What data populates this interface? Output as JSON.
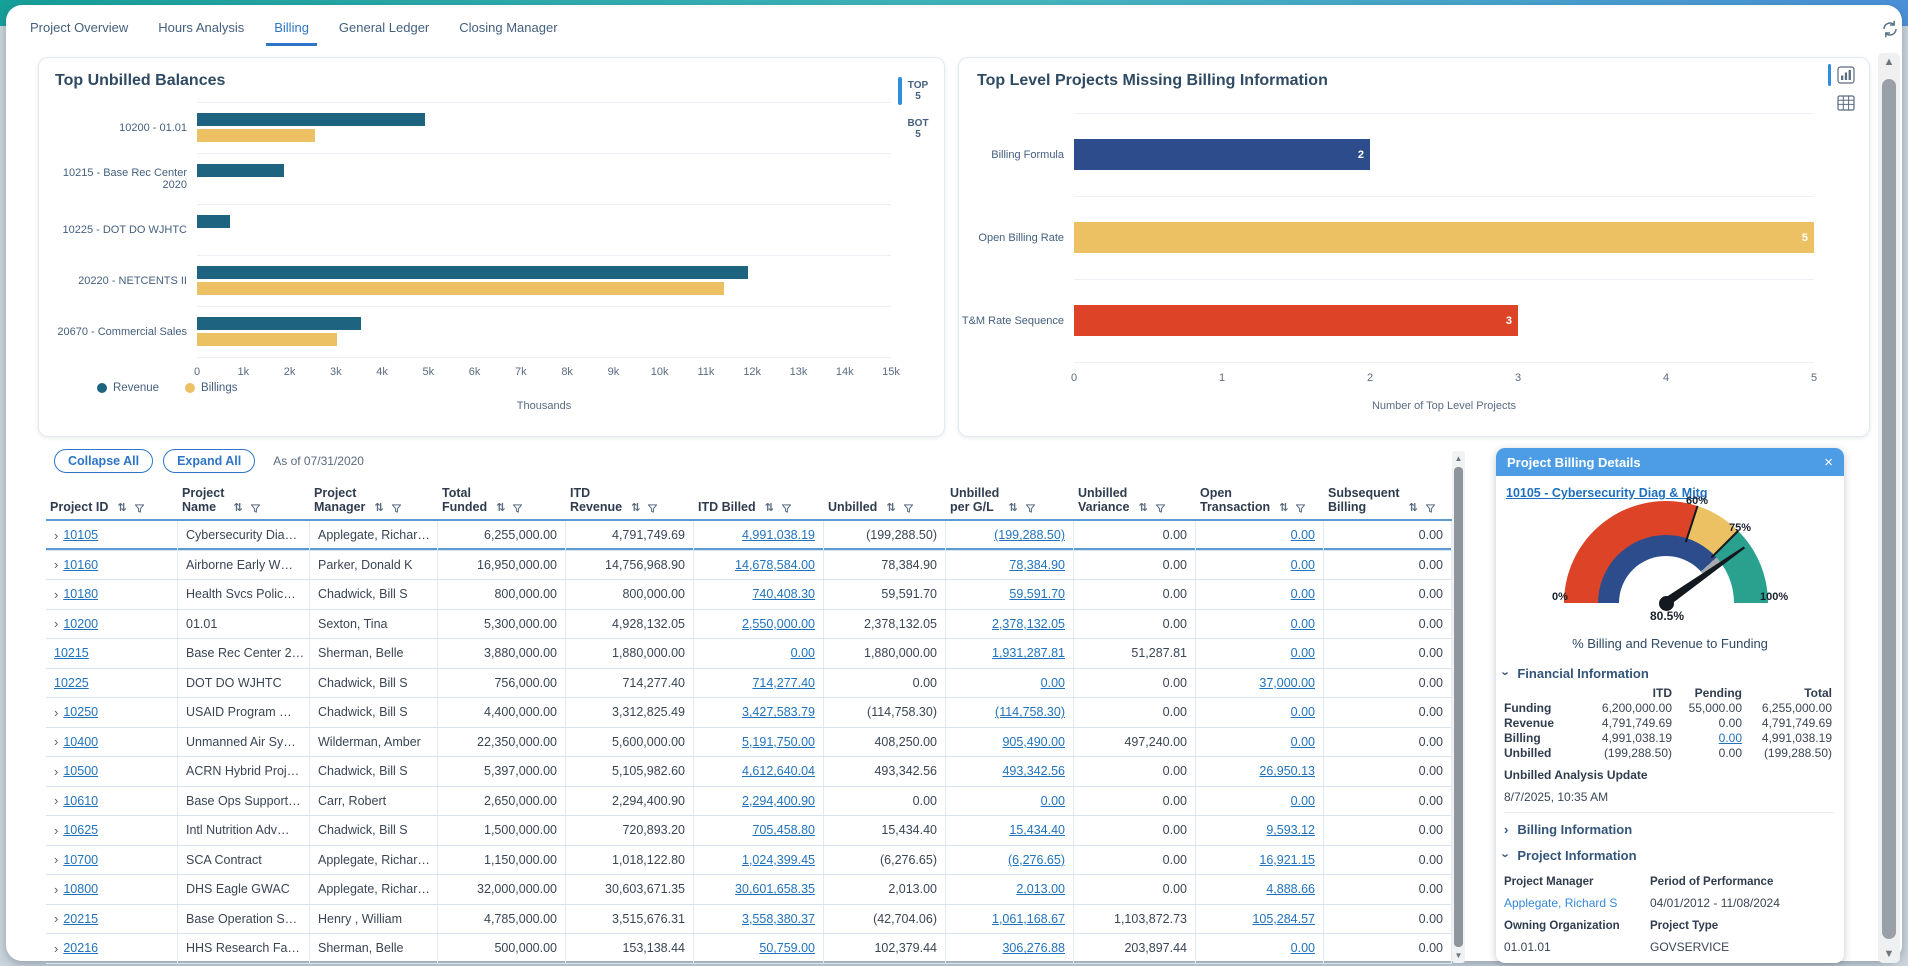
{
  "tabs": [
    {
      "label": "Project Overview",
      "active": false
    },
    {
      "label": "Hours Analysis",
      "active": false
    },
    {
      "label": "Billing",
      "active": true
    },
    {
      "label": "General Ledger",
      "active": false
    },
    {
      "label": "Closing Manager",
      "active": false
    }
  ],
  "toolbar": {
    "collapse_all": "Collapse All",
    "expand_all": "Expand All",
    "as_of": "As of 07/31/2020"
  },
  "chart_data": [
    {
      "type": "bar",
      "orientation": "horizontal",
      "title": "Top Unbilled Balances",
      "categories": [
        "10200 - 01.01",
        "10215 - Base Rec Center 2020",
        "10225 - DOT DO WJHTC",
        "20220 - NETCENTS II",
        "20670 - Commercial Sales"
      ],
      "series": [
        {
          "name": "Revenue",
          "color": "#1e6480",
          "values": [
            4928,
            1880,
            714,
            11900,
            3540
          ]
        },
        {
          "name": "Billings",
          "color": "#ecc164",
          "values": [
            2550,
            0,
            0,
            11400,
            3020
          ]
        }
      ],
      "values_unit": "thousands",
      "xlim": [
        0,
        15000
      ],
      "xticks": [
        "0",
        "1k",
        "2k",
        "3k",
        "4k",
        "5k",
        "6k",
        "7k",
        "8k",
        "9k",
        "10k",
        "11k",
        "12k",
        "13k",
        "14k",
        "15k"
      ],
      "xlabel": "Thousands",
      "legend_position": "bottom-left",
      "toggle": {
        "options": [
          "TOP 5",
          "BOT 5"
        ],
        "active": 0
      }
    },
    {
      "type": "bar",
      "orientation": "horizontal",
      "title": "Top Level Projects Missing Billing Information",
      "categories": [
        "Billing Formula",
        "Open Billing Rate",
        "T&M Rate Sequence"
      ],
      "values": [
        2,
        5,
        3
      ],
      "bar_colors": [
        "#2c4c8c",
        "#ecc164",
        "#dc4327"
      ],
      "data_labels": true,
      "xlim": [
        0,
        5
      ],
      "xticks": [
        "0",
        "1",
        "2",
        "3",
        "4",
        "5"
      ],
      "xlabel": "Number of Top Level Projects",
      "view_icons": [
        "bar-chart-icon",
        "table-icon"
      ],
      "active_view": 0
    },
    {
      "type": "gauge",
      "value": 80.5,
      "value_label": "80.5%",
      "min_label": "0%",
      "max_label": "100%",
      "segment_labels": [
        "60%",
        "75%"
      ],
      "segments": [
        {
          "from": 0,
          "to": 60,
          "color": "#dc4327"
        },
        {
          "from": 60,
          "to": 75,
          "color": "#ecc164"
        },
        {
          "from": 75,
          "to": 100,
          "color": "#2aa18f"
        }
      ],
      "inner_arc": {
        "color": "#2c4c8c",
        "to": 76.6,
        "gray_color": "#a7abb0",
        "gray_to": 80.5
      },
      "caption": "% Billing and Revenue to Funding"
    }
  ],
  "table": {
    "columns": [
      {
        "label": "Project ID"
      },
      {
        "label": "Project\nName"
      },
      {
        "label": "Project\nManager"
      },
      {
        "label": "Total\nFunded"
      },
      {
        "label": "ITD\nRevenue"
      },
      {
        "label": "ITD Billed"
      },
      {
        "label": "Unbilled"
      },
      {
        "label": "Unbilled\nper G/L"
      },
      {
        "label": "Unbilled\nVariance"
      },
      {
        "label": "Open\nTransaction"
      },
      {
        "label": "Subsequent\nBilling"
      }
    ],
    "selected_row_id": "10105",
    "rows": [
      {
        "id": "10105",
        "expandable": true,
        "name": "Cybersecurity Dia…",
        "manager": "Applegate, Richar…",
        "funded": "6,255,000.00",
        "revenue": "4,791,749.69",
        "billed": "4,991,038.19",
        "unbilled": "(199,288.50)",
        "unbilled_gl": "(199,288.50)",
        "variance": "0.00",
        "open_txn": "0.00",
        "subsequent": "0.00"
      },
      {
        "id": "10160",
        "expandable": true,
        "name": "Airborne Early W…",
        "manager": "Parker, Donald K",
        "funded": "16,950,000.00",
        "revenue": "14,756,968.90",
        "billed": "14,678,584.00",
        "unbilled": "78,384.90",
        "unbilled_gl": "78,384.90",
        "variance": "0.00",
        "open_txn": "0.00",
        "subsequent": "0.00"
      },
      {
        "id": "10180",
        "expandable": true,
        "name": "Health Svcs Polic…",
        "manager": "Chadwick, Bill S",
        "funded": "800,000.00",
        "revenue": "800,000.00",
        "billed": "740,408.30",
        "unbilled": "59,591.70",
        "unbilled_gl": "59,591.70",
        "variance": "0.00",
        "open_txn": "0.00",
        "subsequent": "0.00"
      },
      {
        "id": "10200",
        "expandable": true,
        "name": "01.01",
        "manager": "Sexton, Tina",
        "funded": "5,300,000.00",
        "revenue": "4,928,132.05",
        "billed": "2,550,000.00",
        "unbilled": "2,378,132.05",
        "unbilled_gl": "2,378,132.05",
        "variance": "0.00",
        "open_txn": "0.00",
        "subsequent": "0.00"
      },
      {
        "id": "10215",
        "expandable": false,
        "name": "Base Rec Center 2…",
        "manager": "Sherman, Belle",
        "funded": "3,880,000.00",
        "revenue": "1,880,000.00",
        "billed": "0.00",
        "unbilled": "1,880,000.00",
        "unbilled_gl": "1,931,287.81",
        "variance": "51,287.81",
        "open_txn": "0.00",
        "subsequent": "0.00"
      },
      {
        "id": "10225",
        "expandable": false,
        "name": "DOT DO WJHTC",
        "manager": "Chadwick, Bill S",
        "funded": "756,000.00",
        "revenue": "714,277.40",
        "billed": "714,277.40",
        "unbilled": "0.00",
        "unbilled_gl": "0.00",
        "variance": "0.00",
        "open_txn": "37,000.00",
        "subsequent": "0.00"
      },
      {
        "id": "10250",
        "expandable": true,
        "name": "USAID Program …",
        "manager": "Chadwick, Bill S",
        "funded": "4,400,000.00",
        "revenue": "3,312,825.49",
        "billed": "3,427,583.79",
        "unbilled": "(114,758.30)",
        "unbilled_gl": "(114,758.30)",
        "variance": "0.00",
        "open_txn": "0.00",
        "subsequent": "0.00"
      },
      {
        "id": "10400",
        "expandable": true,
        "name": "Unmanned Air Sy…",
        "manager": "Wilderman, Amber",
        "funded": "22,350,000.00",
        "revenue": "5,600,000.00",
        "billed": "5,191,750.00",
        "unbilled": "408,250.00",
        "unbilled_gl": "905,490.00",
        "variance": "497,240.00",
        "open_txn": "0.00",
        "subsequent": "0.00"
      },
      {
        "id": "10500",
        "expandable": true,
        "name": "ACRN Hybrid Proj…",
        "manager": "Chadwick, Bill S",
        "funded": "5,397,000.00",
        "revenue": "5,105,982.60",
        "billed": "4,612,640.04",
        "unbilled": "493,342.56",
        "unbilled_gl": "493,342.56",
        "variance": "0.00",
        "open_txn": "26,950.13",
        "subsequent": "0.00"
      },
      {
        "id": "10610",
        "expandable": true,
        "name": "Base Ops Support…",
        "manager": "Carr, Robert",
        "funded": "2,650,000.00",
        "revenue": "2,294,400.90",
        "billed": "2,294,400.90",
        "unbilled": "0.00",
        "unbilled_gl": "0.00",
        "variance": "0.00",
        "open_txn": "0.00",
        "subsequent": "0.00"
      },
      {
        "id": "10625",
        "expandable": true,
        "name": "Intl Nutrition Adv…",
        "manager": "Chadwick, Bill S",
        "funded": "1,500,000.00",
        "revenue": "720,893.20",
        "billed": "705,458.80",
        "unbilled": "15,434.40",
        "unbilled_gl": "15,434.40",
        "variance": "0.00",
        "open_txn": "9,593.12",
        "subsequent": "0.00"
      },
      {
        "id": "10700",
        "expandable": true,
        "name": "SCA Contract",
        "manager": "Applegate, Richar…",
        "funded": "1,150,000.00",
        "revenue": "1,018,122.80",
        "billed": "1,024,399.45",
        "unbilled": "(6,276.65)",
        "unbilled_gl": "(6,276.65)",
        "variance": "0.00",
        "open_txn": "16,921.15",
        "subsequent": "0.00"
      },
      {
        "id": "10800",
        "expandable": true,
        "name": "DHS Eagle GWAC",
        "manager": "Applegate, Richar…",
        "funded": "32,000,000.00",
        "revenue": "30,603,671.35",
        "billed": "30,601,658.35",
        "unbilled": "2,013.00",
        "unbilled_gl": "2,013.00",
        "variance": "0.00",
        "open_txn": "4,888.66",
        "subsequent": "0.00"
      },
      {
        "id": "20215",
        "expandable": true,
        "name": "Base Operation S…",
        "manager": "Henry , William",
        "funded": "4,785,000.00",
        "revenue": "3,515,676.31",
        "billed": "3,558,380.37",
        "unbilled": "(42,704.06)",
        "unbilled_gl": "1,061,168.67",
        "variance": "1,103,872.73",
        "open_txn": "105,284.57",
        "subsequent": "0.00"
      },
      {
        "id": "20216",
        "expandable": true,
        "name": "HHS Research Fa…",
        "manager": "Sherman, Belle",
        "funded": "500,000.00",
        "revenue": "153,138.44",
        "billed": "50,759.00",
        "unbilled": "102,379.44",
        "unbilled_gl": "306,276.88",
        "variance": "203,897.44",
        "open_txn": "0.00",
        "subsequent": "0.00"
      }
    ]
  },
  "details": {
    "title": "Project Billing Details",
    "project_link": "10105 - Cybersecurity Diag & Mitg",
    "financial": {
      "heading": "Financial Information",
      "columns": [
        "ITD",
        "Pending",
        "Total"
      ],
      "rows": [
        {
          "label": "Funding",
          "itd": "6,200,000.00",
          "pending": "55,000.00",
          "total": "6,255,000.00",
          "pending_link": false
        },
        {
          "label": "Revenue",
          "itd": "4,791,749.69",
          "pending": "0.00",
          "total": "4,791,749.69",
          "pending_link": false
        },
        {
          "label": "Billing",
          "itd": "4,991,038.19",
          "pending": "0.00",
          "total": "4,991,038.19",
          "pending_link": true
        },
        {
          "label": "Unbilled",
          "itd": "(199,288.50)",
          "pending": "0.00",
          "total": "(199,288.50)",
          "pending_link": false
        }
      ],
      "update_label": "Unbilled Analysis Update",
      "update_value": "8/7/2025, 10:35 AM"
    },
    "sections": {
      "billing": "Billing Information",
      "project": "Project Information"
    },
    "project_info": [
      {
        "label": "Project Manager",
        "value": "Applegate, Richard S",
        "link": true
      },
      {
        "label": "Period of Performance",
        "value": "04/01/2012 - 11/08/2024",
        "link": false
      },
      {
        "label": "Owning Organization",
        "value": "01.01.01",
        "link": false
      },
      {
        "label": "Project Type",
        "value": "GOVSERVICE",
        "link": false
      }
    ]
  },
  "icons": {
    "sort": "⇅",
    "chevron": "›",
    "close": "×",
    "triangle_up": "▲",
    "triangle_down": "▼"
  },
  "colors": {
    "accent_blue": "#2e75c8",
    "link": "#2173bd",
    "header_blue": "#4d9de6",
    "selected_border": "#5b9bd5",
    "teal": "#1e6480",
    "yellow": "#ecc164",
    "navy": "#2c4c8c",
    "red": "#dc4327",
    "gauge_teal": "#2aa18f",
    "top_gradient_left": "#16a09a",
    "top_gradient_right": "#4a90d9"
  }
}
